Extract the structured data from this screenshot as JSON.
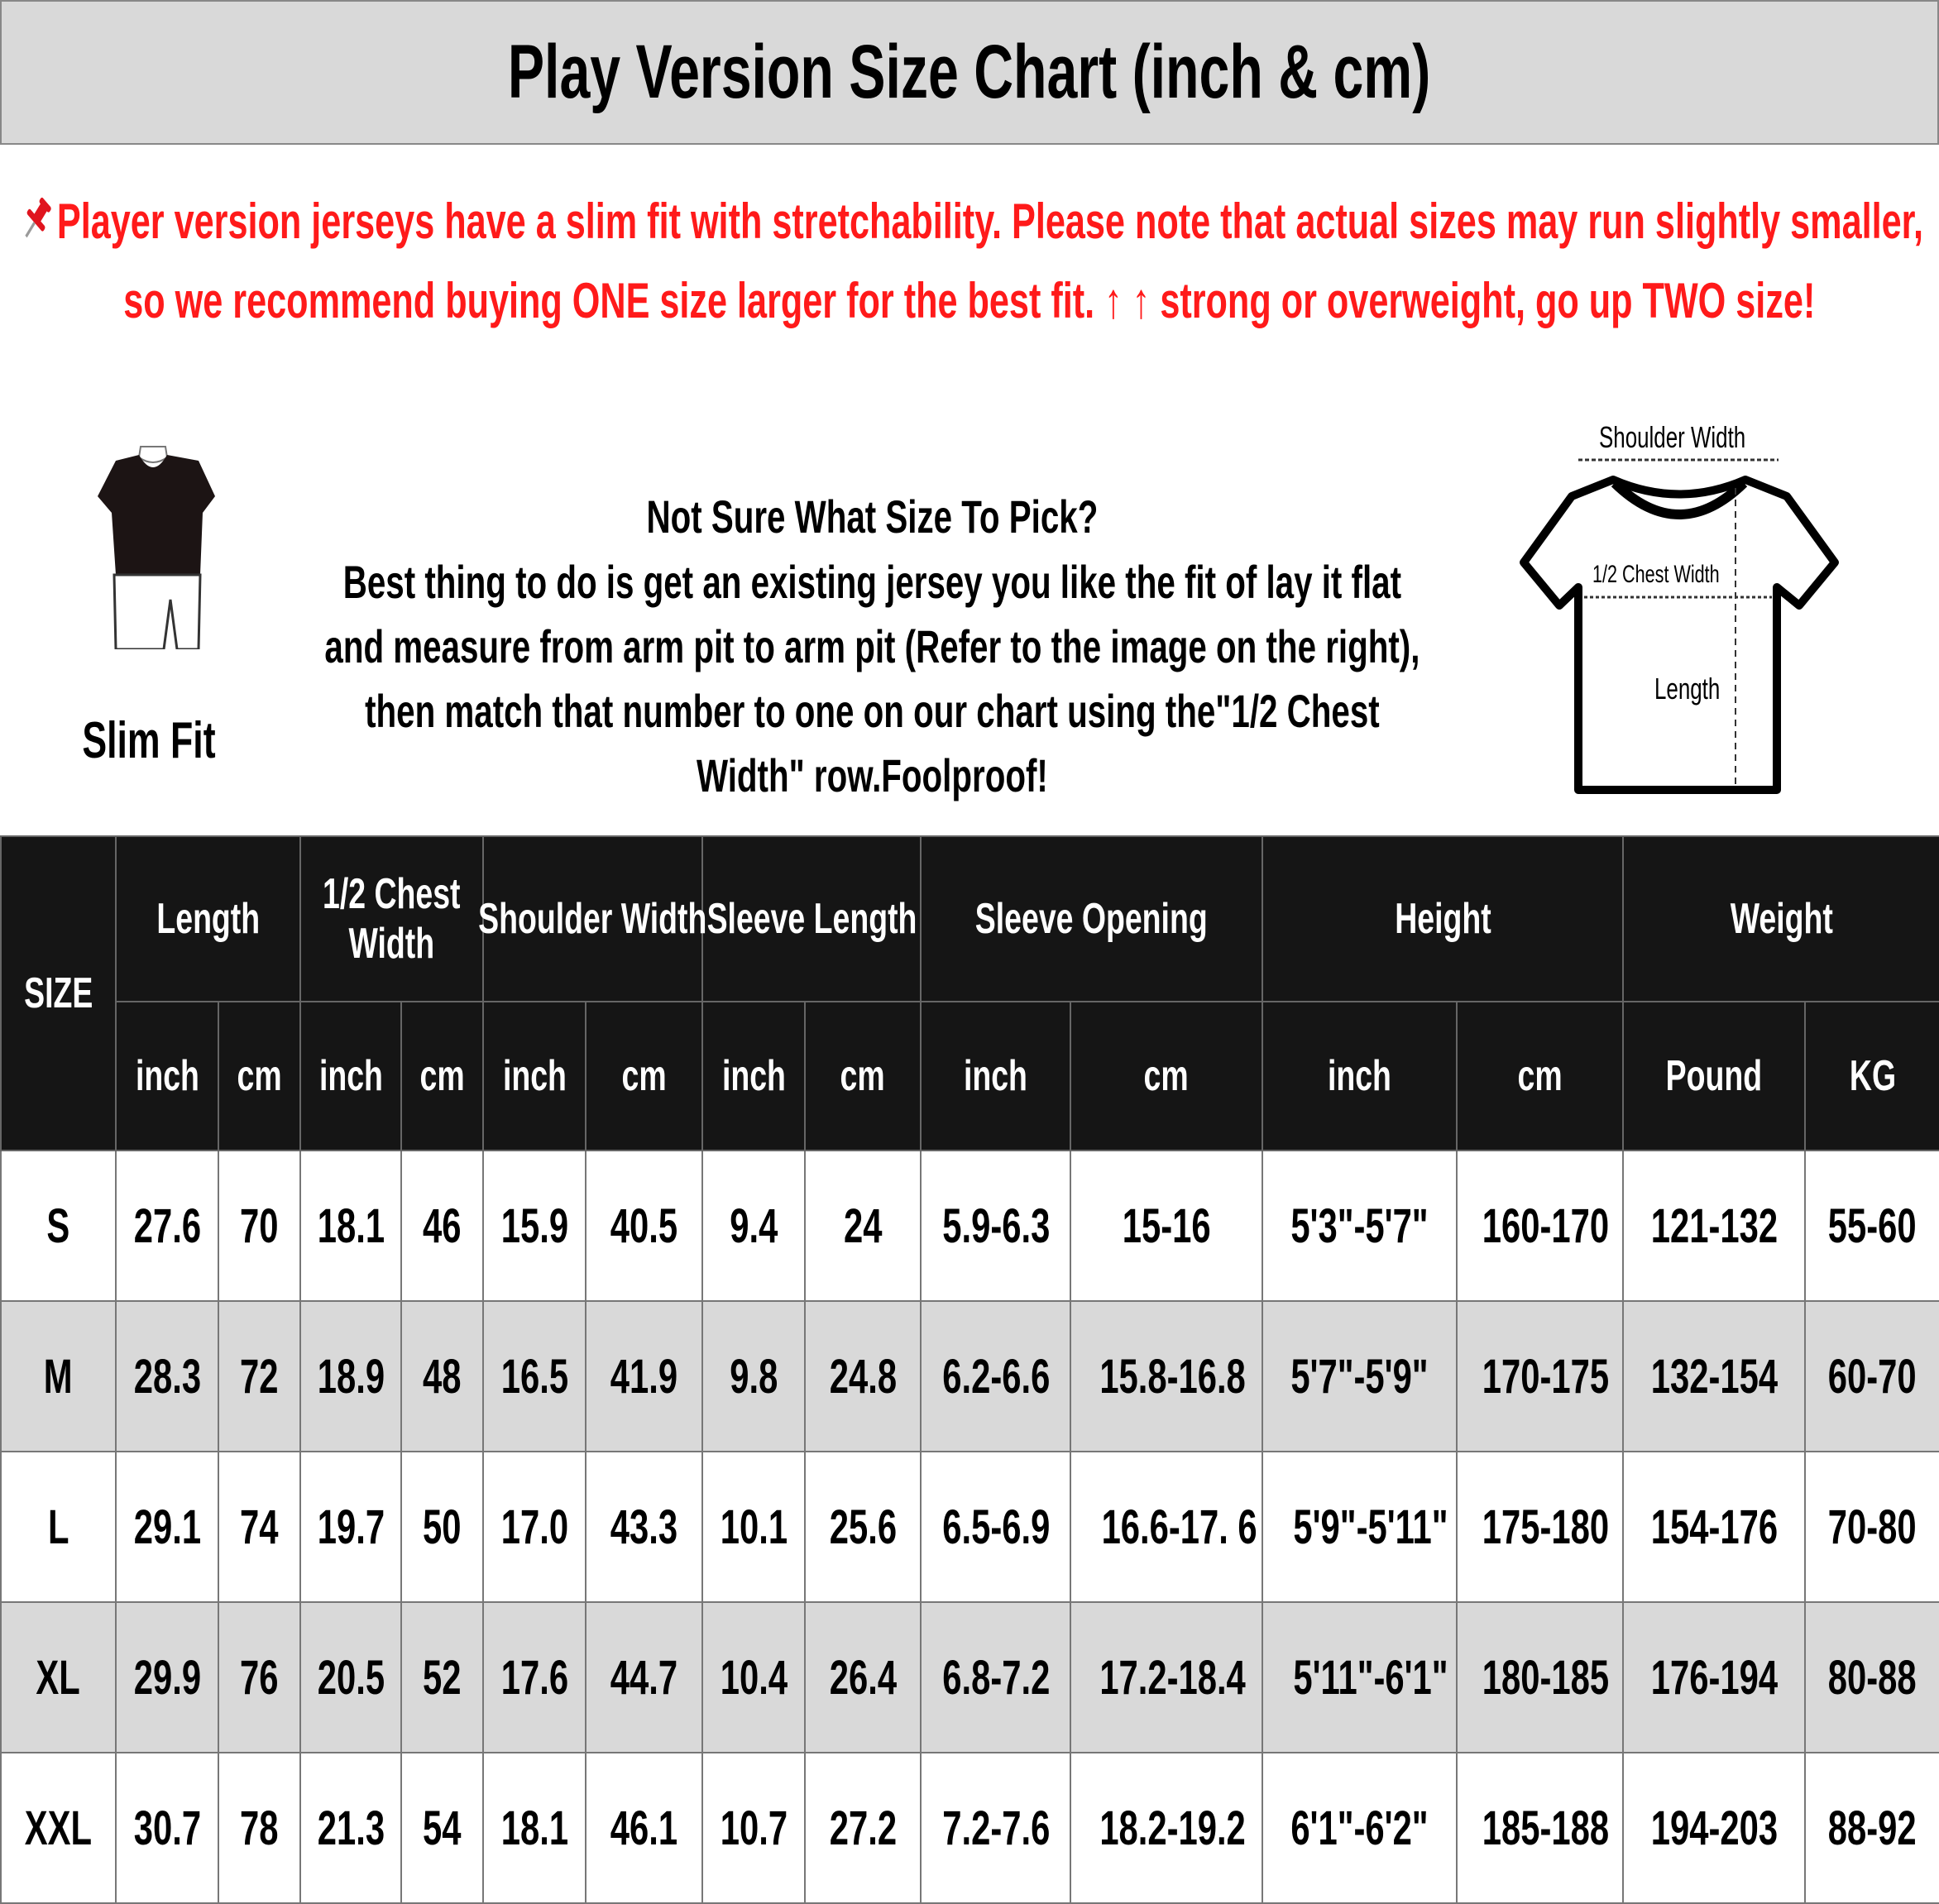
{
  "title": "Play Version Size Chart (inch & cm)",
  "notice": {
    "icon": "pushpin-icon",
    "text": "Player version jerseys have a slim fit with stretchability. Please note that actual sizes may run slightly smaller, so we recommend buying ONE size larger for the best fit. ↑ ↑ strong or overweight, go up TWO size!",
    "color": "#ff1a1a"
  },
  "instructions": {
    "heading": "Not Sure What Size To Pick?",
    "body": "Best thing to do is get an existing jersey you like the fit of lay it flat and measure from arm pit to arm pit (Refer to the image on the right), then match that number to one on our chart using the\"1/2 Chest Width\" row.Foolproof!"
  },
  "fit": {
    "label": "Slim Fit"
  },
  "diagram": {
    "shoulder": "Shoulder Width",
    "chest": "1/2 Chest Width",
    "length": "Length"
  },
  "table": {
    "size_header": "SIZE",
    "groups": [
      "Length",
      "1/2 Chest Width",
      "Shoulder Width",
      "Sleeve Length",
      "Sleeve Opening",
      "Height",
      "Weight"
    ],
    "units": [
      "inch",
      "cm",
      "inch",
      "cm",
      "inch",
      "cm",
      "inch",
      "cm",
      "inch",
      "cm",
      "inch",
      "cm",
      "Pound",
      "KG"
    ],
    "rows": [
      [
        "S",
        "27.6",
        "70",
        "18.1",
        "46",
        "15.9",
        "40.5",
        "9.4",
        "24",
        "5.9-6.3",
        "15-16",
        "5'3\"-5'7\"",
        "160-170",
        "121-132",
        "55-60"
      ],
      [
        "M",
        "28.3",
        "72",
        "18.9",
        "48",
        "16.5",
        "41.9",
        "9.8",
        "24.8",
        "6.2-6.6",
        "15.8-16.8",
        "5'7\"-5'9\"",
        "170-175",
        "132-154",
        "60-70"
      ],
      [
        "L",
        "29.1",
        "74",
        "19.7",
        "50",
        "17.0",
        "43.3",
        "10.1",
        "25.6",
        "6.5-6.9",
        "16.6-17. 6",
        "5'9\"-5'11\"",
        "175-180",
        "154-176",
        "70-80"
      ],
      [
        "XL",
        "29.9",
        "76",
        "20.5",
        "52",
        "17.6",
        "44.7",
        "10.4",
        "26.4",
        "6.8-7.2",
        "17.2-18.4",
        "5'11\"-6'1\"",
        "180-185",
        "176-194",
        "80-88"
      ],
      [
        "XXL",
        "30.7",
        "78",
        "21.3",
        "54",
        "18.1",
        "46.1",
        "10.7",
        "27.2",
        "7.2-7.6",
        "18.2-19.2",
        "6'1\"-6'2\"",
        "185-188",
        "194-203",
        "88-92"
      ]
    ]
  }
}
